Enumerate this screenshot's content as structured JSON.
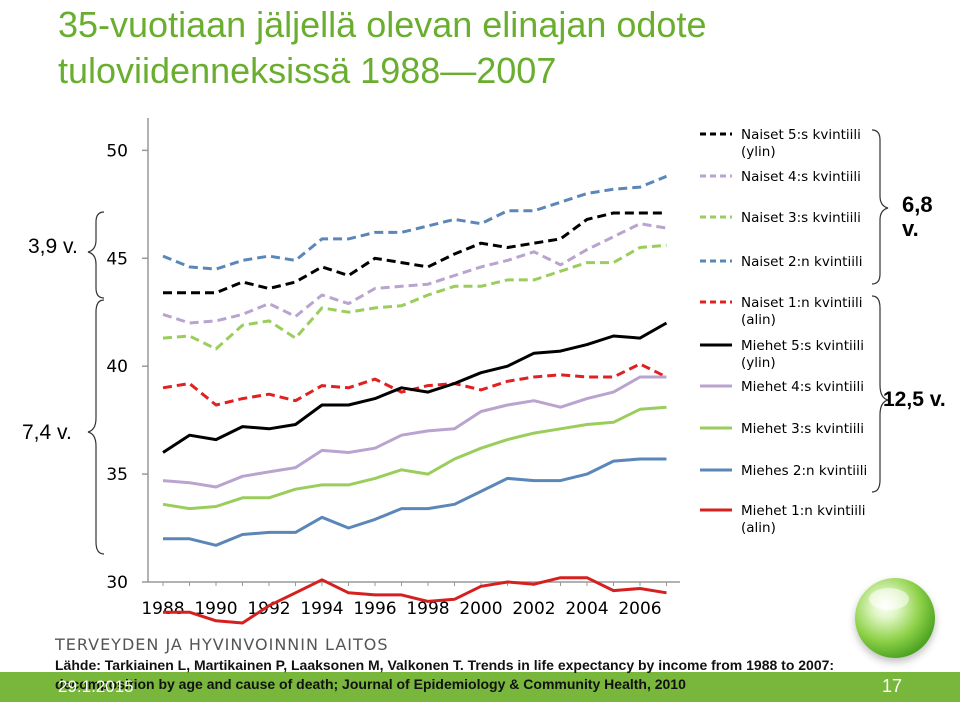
{
  "title": {
    "line1": "35-vuotiaan jäljellä olevan elinajan odote",
    "line2": "tuloviidenneksissä 1988—2007"
  },
  "annotations": {
    "gap_men": "7,4 v.",
    "gap_women": "3,9 v.",
    "gap_top": "6,8 v.",
    "gap_bottom": "12,5 v."
  },
  "footer": {
    "organization": "TERVEYDEN JA HYVINVOINNIN LAITOS",
    "source": "Lähde: Tarkiainen L, Martikainen P, Laaksonen M, Valkonen T. Trends in life expectancy by income from 1988 to 2007: decomposition by age and cause of death; Journal of Epidemiology & Community Health, 2010",
    "date": "29.1.2015",
    "page": "17"
  },
  "colors": {
    "title": "#6aae2f",
    "footer_bar": "#78b63c"
  },
  "chart_data": {
    "type": "line",
    "x": [
      1988,
      1989,
      1990,
      1991,
      1992,
      1993,
      1994,
      1995,
      1996,
      1997,
      1998,
      1999,
      2000,
      2001,
      2002,
      2003,
      2004,
      2005,
      2006,
      2007
    ],
    "x_tick_labels": [
      "1988",
      "1990",
      "1992",
      "1994",
      "1996",
      "1998",
      "2000",
      "2002",
      "2004",
      "2006"
    ],
    "y_tick_labels": [
      "30",
      "35",
      "40",
      "45",
      "50"
    ],
    "ylim": [
      30,
      51.5
    ],
    "series": [
      {
        "name": "Naiset 5:s kvintiili (ylin)",
        "color": "#000000",
        "dash": "dashed",
        "values": [
          43.4,
          43.4,
          43.4,
          43.9,
          43.6,
          43.9,
          44.6,
          44.2,
          45.0,
          44.8,
          44.6,
          45.2,
          45.7,
          45.5,
          45.7,
          45.9,
          46.8,
          47.1,
          47.1,
          47.1
        ]
      },
      {
        "name": "Naiset 4:s kvintiili",
        "color": "#b9a3cf",
        "dash": "dashed",
        "values": [
          42.4,
          42.0,
          42.1,
          42.4,
          42.9,
          42.3,
          43.3,
          42.9,
          43.6,
          43.7,
          43.8,
          44.2,
          44.6,
          44.9,
          45.3,
          44.7,
          45.4,
          46.0,
          46.6,
          46.4
        ]
      },
      {
        "name": "Naiset 3:s kvintiili",
        "color": "#9acd5b",
        "dash": "dashed",
        "values": [
          41.3,
          41.4,
          40.8,
          41.9,
          42.1,
          41.3,
          42.7,
          42.5,
          42.7,
          42.8,
          43.3,
          43.7,
          43.7,
          44.0,
          44.0,
          44.4,
          44.8,
          44.8,
          45.5,
          45.6
        ]
      },
      {
        "name": "Naiset 2:n kvintiili",
        "color": "#5b87b8",
        "dash": "dashed",
        "values": [
          45.1,
          44.6,
          44.5,
          44.9,
          45.1,
          44.9,
          45.9,
          45.9,
          46.2,
          46.2,
          46.5,
          46.8,
          46.6,
          47.2,
          47.2,
          47.6,
          48.0,
          48.2,
          48.3,
          48.8
        ]
      },
      {
        "name": "Naiset 1:n kvintiili (alin)",
        "color": "#e02121",
        "dash": "dashed",
        "values": [
          39.0,
          39.2,
          38.2,
          38.5,
          38.7,
          38.4,
          39.1,
          39.0,
          39.4,
          38.8,
          39.1,
          39.2,
          38.9,
          39.3,
          39.5,
          39.6,
          39.5,
          39.5,
          40.1,
          39.5
        ]
      },
      {
        "name": "Miehet 5:s kvintiili (ylin)",
        "color": "#000000",
        "dash": "solid",
        "values": [
          36.0,
          36.8,
          36.6,
          37.2,
          37.1,
          37.3,
          38.2,
          38.2,
          38.5,
          39.0,
          38.8,
          39.2,
          39.7,
          40.0,
          40.6,
          40.7,
          41.0,
          41.4,
          41.3,
          42.0
        ]
      },
      {
        "name": "Miehet 4:s kvintiili",
        "color": "#b9a3cf",
        "dash": "solid",
        "values": [
          34.7,
          34.6,
          34.4,
          34.9,
          35.1,
          35.3,
          36.1,
          36.0,
          36.2,
          36.8,
          37.0,
          37.1,
          37.9,
          38.2,
          38.4,
          38.1,
          38.5,
          38.8,
          39.5,
          39.5
        ]
      },
      {
        "name": "Miehet 3:s kvintiili",
        "color": "#9acd5b",
        "dash": "solid",
        "values": [
          33.6,
          33.4,
          33.5,
          33.9,
          33.9,
          34.3,
          34.5,
          34.5,
          34.8,
          35.2,
          35.0,
          35.7,
          36.2,
          36.6,
          36.9,
          37.1,
          37.3,
          37.4,
          38.0,
          38.1
        ]
      },
      {
        "name": "Miehes 2:n kvintiili",
        "color": "#5b87b8",
        "dash": "solid",
        "values": [
          32.0,
          32.0,
          31.7,
          32.2,
          32.3,
          32.3,
          33.0,
          32.5,
          32.9,
          33.4,
          33.4,
          33.6,
          34.2,
          34.8,
          34.7,
          34.7,
          35.0,
          35.6,
          35.7,
          35.7
        ]
      },
      {
        "name": "Miehet 1:n kvintiili (alin)",
        "color": "#d52020",
        "dash": "solid",
        "values": [
          28.6,
          28.6,
          28.2,
          28.1,
          28.9,
          29.5,
          30.1,
          29.5,
          29.4,
          29.4,
          29.1,
          29.2,
          29.8,
          30.0,
          29.9,
          30.2,
          30.2,
          29.6,
          29.7,
          29.5
        ]
      }
    ]
  }
}
